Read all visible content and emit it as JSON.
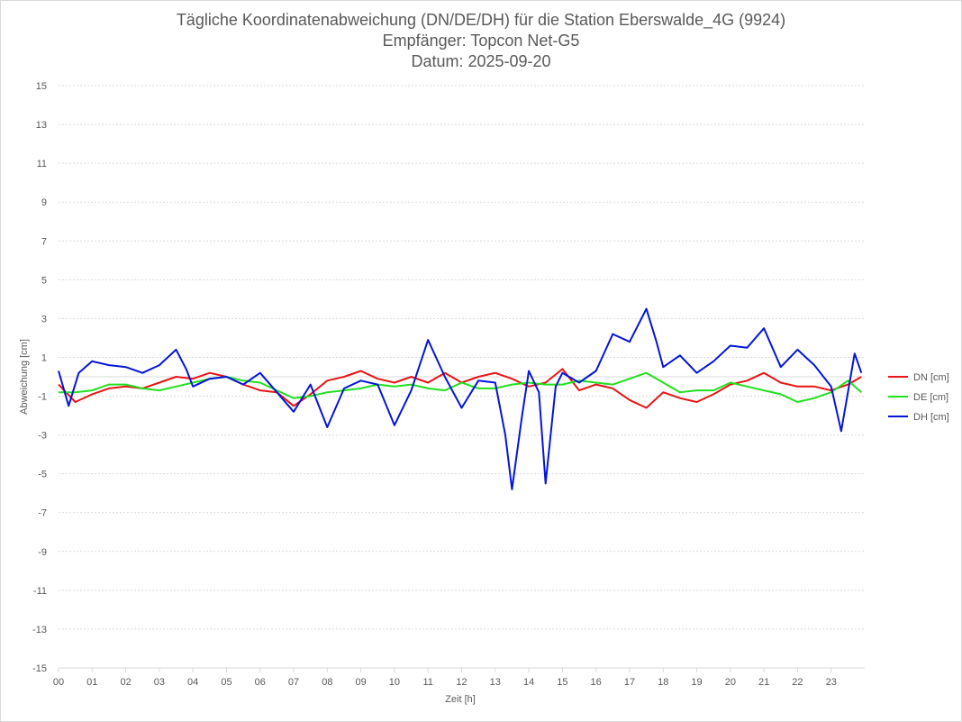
{
  "chart_data": {
    "type": "line",
    "title": "Tägliche Koordinatenabweichung (DN/DE/DH) für die Station Eberswalde_4G (9924)",
    "subtitle": "Empfänger: Topcon Net-G5",
    "date_line": "Datum: 2025-09-20",
    "xlabel": "Zeit [h]",
    "ylabel": "Abweichung [cm]",
    "xlim": [
      0,
      24
    ],
    "ylim": [
      -15,
      15
    ],
    "yticks": [
      "15",
      "13",
      "11",
      "9",
      "7",
      "5",
      "3",
      "1",
      "-1",
      "-3",
      "-5",
      "-7",
      "-9",
      "-11",
      "-13",
      "-15"
    ],
    "xticks": [
      "00",
      "01",
      "02",
      "03",
      "04",
      "05",
      "06",
      "07",
      "08",
      "09",
      "10",
      "11",
      "12",
      "13",
      "14",
      "15",
      "16",
      "17",
      "18",
      "19",
      "20",
      "21",
      "22",
      "23"
    ],
    "grid": true,
    "legend_position": "right",
    "series": [
      {
        "name": "DN [cm]",
        "color": "#e81416",
        "points": [
          [
            0,
            -0.4
          ],
          [
            0.5,
            -1.3
          ],
          [
            1,
            -0.9
          ],
          [
            1.5,
            -0.6
          ],
          [
            2,
            -0.5
          ],
          [
            2.5,
            -0.6
          ],
          [
            3,
            -0.3
          ],
          [
            3.5,
            0
          ],
          [
            4,
            -0.1
          ],
          [
            4.5,
            0.2
          ],
          [
            5,
            0
          ],
          [
            5.5,
            -0.4
          ],
          [
            6,
            -0.7
          ],
          [
            6.5,
            -0.8
          ],
          [
            7,
            -1.5
          ],
          [
            7.5,
            -0.9
          ],
          [
            8,
            -0.2
          ],
          [
            8.5,
            0
          ],
          [
            9,
            0.3
          ],
          [
            9.5,
            -0.1
          ],
          [
            10,
            -0.3
          ],
          [
            10.5,
            0
          ],
          [
            11,
            -0.3
          ],
          [
            11.5,
            0.2
          ],
          [
            12,
            -0.3
          ],
          [
            12.5,
            0
          ],
          [
            13,
            0.2
          ],
          [
            13.5,
            -0.1
          ],
          [
            14,
            -0.5
          ],
          [
            14.5,
            -0.3
          ],
          [
            15,
            0.4
          ],
          [
            15.5,
            -0.7
          ],
          [
            16,
            -0.4
          ],
          [
            16.5,
            -0.6
          ],
          [
            17,
            -1.2
          ],
          [
            17.5,
            -1.6
          ],
          [
            18,
            -0.8
          ],
          [
            18.5,
            -1.1
          ],
          [
            19,
            -1.3
          ],
          [
            19.5,
            -0.9
          ],
          [
            20,
            -0.4
          ],
          [
            20.5,
            -0.2
          ],
          [
            21,
            0.2
          ],
          [
            21.5,
            -0.3
          ],
          [
            22,
            -0.5
          ],
          [
            22.5,
            -0.5
          ],
          [
            23,
            -0.7
          ],
          [
            23.5,
            -0.4
          ],
          [
            23.9,
            0
          ]
        ]
      },
      {
        "name": "DE [cm]",
        "color": "#21e01e",
        "points": [
          [
            0,
            -0.8
          ],
          [
            0.5,
            -0.8
          ],
          [
            1,
            -0.7
          ],
          [
            1.5,
            -0.4
          ],
          [
            2,
            -0.4
          ],
          [
            2.5,
            -0.6
          ],
          [
            3,
            -0.7
          ],
          [
            3.5,
            -0.5
          ],
          [
            4,
            -0.3
          ],
          [
            4.5,
            -0.1
          ],
          [
            5,
            0
          ],
          [
            5.5,
            -0.2
          ],
          [
            6,
            -0.3
          ],
          [
            6.5,
            -0.7
          ],
          [
            7,
            -1.1
          ],
          [
            7.5,
            -1
          ],
          [
            8,
            -0.8
          ],
          [
            8.5,
            -0.7
          ],
          [
            9,
            -0.6
          ],
          [
            9.5,
            -0.4
          ],
          [
            10,
            -0.5
          ],
          [
            10.5,
            -0.4
          ],
          [
            11,
            -0.6
          ],
          [
            11.5,
            -0.7
          ],
          [
            12,
            -0.3
          ],
          [
            12.5,
            -0.6
          ],
          [
            13,
            -0.6
          ],
          [
            13.5,
            -0.4
          ],
          [
            14,
            -0.3
          ],
          [
            14.5,
            -0.4
          ],
          [
            15,
            -0.4
          ],
          [
            15.5,
            -0.2
          ],
          [
            16,
            -0.3
          ],
          [
            16.5,
            -0.4
          ],
          [
            17,
            -0.1
          ],
          [
            17.5,
            0.2
          ],
          [
            18,
            -0.3
          ],
          [
            18.5,
            -0.8
          ],
          [
            19,
            -0.7
          ],
          [
            19.5,
            -0.7
          ],
          [
            20,
            -0.3
          ],
          [
            20.5,
            -0.5
          ],
          [
            21,
            -0.7
          ],
          [
            21.5,
            -0.9
          ],
          [
            22,
            -1.3
          ],
          [
            22.5,
            -1.1
          ],
          [
            23,
            -0.8
          ],
          [
            23.5,
            -0.2
          ],
          [
            23.9,
            -0.8
          ]
        ]
      },
      {
        "name": "DH [cm]",
        "color": "#0515d9",
        "points": [
          [
            0,
            0.3
          ],
          [
            0.3,
            -1.5
          ],
          [
            0.6,
            0.2
          ],
          [
            1,
            0.8
          ],
          [
            1.5,
            0.6
          ],
          [
            2,
            0.5
          ],
          [
            2.5,
            0.2
          ],
          [
            3,
            0.6
          ],
          [
            3.5,
            1.4
          ],
          [
            3.8,
            0.4
          ],
          [
            4,
            -0.5
          ],
          [
            4.5,
            -0.1
          ],
          [
            5,
            0
          ],
          [
            5.5,
            -0.4
          ],
          [
            6,
            0.2
          ],
          [
            6.5,
            -0.8
          ],
          [
            7,
            -1.8
          ],
          [
            7.5,
            -0.4
          ],
          [
            8,
            -2.6
          ],
          [
            8.5,
            -0.6
          ],
          [
            9,
            -0.2
          ],
          [
            9.5,
            -0.4
          ],
          [
            10,
            -2.5
          ],
          [
            10.5,
            -0.7
          ],
          [
            11,
            1.9
          ],
          [
            11.5,
            0
          ],
          [
            12,
            -1.6
          ],
          [
            12.5,
            -0.2
          ],
          [
            13,
            -0.3
          ],
          [
            13.3,
            -3
          ],
          [
            13.5,
            -5.8
          ],
          [
            13.8,
            -2
          ],
          [
            14,
            0.3
          ],
          [
            14.3,
            -0.8
          ],
          [
            14.5,
            -5.5
          ],
          [
            14.8,
            -0.5
          ],
          [
            15,
            0.2
          ],
          [
            15.5,
            -0.3
          ],
          [
            16,
            0.3
          ],
          [
            16.5,
            2.2
          ],
          [
            17,
            1.8
          ],
          [
            17.5,
            3.5
          ],
          [
            17.8,
            1.8
          ],
          [
            18,
            0.5
          ],
          [
            18.5,
            1.1
          ],
          [
            19,
            0.2
          ],
          [
            19.5,
            0.8
          ],
          [
            20,
            1.6
          ],
          [
            20.5,
            1.5
          ],
          [
            21,
            2.5
          ],
          [
            21.5,
            0.5
          ],
          [
            22,
            1.4
          ],
          [
            22.5,
            0.6
          ],
          [
            23,
            -0.5
          ],
          [
            23.3,
            -2.8
          ],
          [
            23.7,
            1.2
          ],
          [
            23.9,
            0.2
          ]
        ]
      }
    ]
  }
}
